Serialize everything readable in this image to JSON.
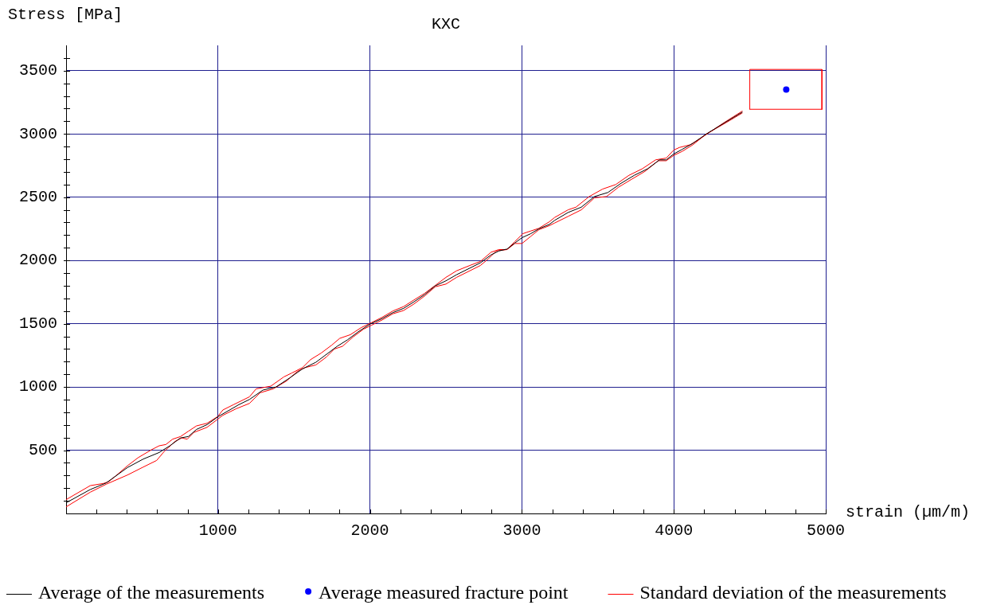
{
  "chart_data": {
    "type": "line",
    "title": "KXC",
    "xlabel": "strain (µm/m)",
    "ylabel": "Stress [MPa]",
    "xlim": [
      0,
      5000
    ],
    "ylim": [
      0,
      3700
    ],
    "xticks": [
      {
        "value": 200,
        "label": null
      },
      {
        "value": 400,
        "label": null
      },
      {
        "value": 600,
        "label": null
      },
      {
        "value": 800,
        "label": null
      },
      1000,
      {
        "value": 1200,
        "label": null
      },
      {
        "value": 1400,
        "label": null
      },
      {
        "value": 1600,
        "label": null
      },
      {
        "value": 1800,
        "label": null
      },
      2000,
      {
        "value": 2200,
        "label": null
      },
      {
        "value": 2400,
        "label": null
      },
      {
        "value": 2600,
        "label": null
      },
      {
        "value": 2800,
        "label": null
      },
      3000,
      {
        "value": 3200,
        "label": null
      },
      {
        "value": 3400,
        "label": null
      },
      {
        "value": 3600,
        "label": null
      },
      {
        "value": 3800,
        "label": null
      },
      4000,
      {
        "value": 4200,
        "label": null
      },
      {
        "value": 4400,
        "label": null
      },
      {
        "value": 4600,
        "label": null
      },
      {
        "value": 4800,
        "label": null
      },
      5000
    ],
    "yticks": [
      {
        "value": 100,
        "label": null
      },
      {
        "value": 200,
        "label": null
      },
      {
        "value": 300,
        "label": null
      },
      {
        "value": 400,
        "label": null
      },
      500,
      {
        "value": 600,
        "label": null
      },
      {
        "value": 700,
        "label": null
      },
      {
        "value": 800,
        "label": null
      },
      {
        "value": 900,
        "label": null
      },
      1000,
      {
        "value": 1100,
        "label": null
      },
      {
        "value": 1200,
        "label": null
      },
      {
        "value": 1300,
        "label": null
      },
      {
        "value": 1400,
        "label": null
      },
      1500,
      {
        "value": 1600,
        "label": null
      },
      {
        "value": 1700,
        "label": null
      },
      {
        "value": 1800,
        "label": null
      },
      {
        "value": 1900,
        "label": null
      },
      2000,
      {
        "value": 2100,
        "label": null
      },
      {
        "value": 2200,
        "label": null
      },
      {
        "value": 2300,
        "label": null
      },
      {
        "value": 2400,
        "label": null
      },
      2500,
      {
        "value": 2600,
        "label": null
      },
      {
        "value": 2700,
        "label": null
      },
      {
        "value": 2800,
        "label": null
      },
      {
        "value": 2900,
        "label": null
      },
      3000,
      {
        "value": 3100,
        "label": null
      },
      {
        "value": 3200,
        "label": null
      },
      {
        "value": 3300,
        "label": null
      },
      {
        "value": 3400,
        "label": null
      },
      3500,
      {
        "value": 3600,
        "label": null
      }
    ],
    "grid": true,
    "legend": "bottom",
    "series": [
      {
        "name": "Average of the measurements",
        "color": "#000000",
        "x": [
          0,
          159,
          264,
          404,
          508,
          613,
          683,
          753,
          805,
          858,
          928,
          1000,
          1137,
          1207,
          1295,
          1382,
          1469,
          1556,
          1644,
          1714,
          1784,
          1853,
          1923,
          1998,
          2081,
          2150,
          2221,
          2290,
          2360,
          2430,
          2500,
          2570,
          2657,
          2727,
          2797,
          2849,
          2902,
          2954,
          3001,
          3059,
          3112,
          3181,
          3216,
          3304,
          3391,
          3478,
          3566,
          3653,
          3740,
          3828,
          3906,
          3950,
          3999,
          4055,
          4125,
          4212,
          4334,
          4450
        ],
        "values": [
          84,
          189,
          241,
          363,
          430,
          482,
          535,
          597,
          608,
          664,
          702,
          765,
          860,
          901,
          975,
          1000,
          1069,
          1143,
          1195,
          1258,
          1321,
          1373,
          1436,
          1495,
          1541,
          1587,
          1621,
          1673,
          1730,
          1799,
          1839,
          1887,
          1939,
          1981,
          2044,
          2075,
          2090,
          2138,
          2180,
          2212,
          2250,
          2285,
          2317,
          2379,
          2421,
          2505,
          2537,
          2610,
          2673,
          2725,
          2795,
          2795,
          2841,
          2878,
          2925,
          2998,
          3088,
          3172
        ]
      },
      {
        "name": "Average measured fracture point",
        "type": "scatter",
        "marker": "circle",
        "color": "#0000ff",
        "x": [
          4740
        ],
        "values": [
          3350
        ]
      },
      {
        "name": "Standard deviation of the measurements",
        "color": "#ff0000",
        "x": [
          0,
          159,
          246,
          281,
          334,
          404,
          473,
          561,
          613,
          657,
          701,
          753,
          805,
          858,
          928,
          997,
          1032,
          1102,
          1207,
          1251,
          1347,
          1434,
          1487,
          1556,
          1609,
          1679,
          1749,
          1801,
          1871,
          1941,
          2011,
          2081,
          2150,
          2221,
          2290,
          2360,
          2430,
          2500,
          2570,
          2657,
          2727,
          2797,
          2849,
          2902,
          2954,
          3007,
          3059,
          3112,
          3181,
          3216,
          3304,
          3356,
          3443,
          3531,
          3618,
          3705,
          3793,
          3880,
          3950,
          3999,
          4037,
          4107,
          4177,
          4334,
          4450
        ],
        "values": [
          109,
          220,
          237,
          252,
          304,
          377,
          440,
          503,
          535,
          545,
          587,
          608,
          650,
          692,
          713,
          765,
          818,
          860,
          922,
          985,
          1006,
          1080,
          1111,
          1153,
          1216,
          1268,
          1331,
          1384,
          1413,
          1468,
          1509,
          1551,
          1600,
          1635,
          1688,
          1740,
          1803,
          1866,
          1918,
          1960,
          1992,
          2065,
          2086,
          2086,
          2149,
          2212,
          2233,
          2254,
          2306,
          2340,
          2400,
          2421,
          2505,
          2564,
          2600,
          2673,
          2725,
          2795,
          2809,
          2872,
          2893,
          2914,
          2966,
          3092,
          3180
        ]
      },
      {
        "color": "#ff0000",
        "x": [
          0,
          159,
          264,
          404,
          508,
          596,
          648,
          718,
          762,
          797,
          840,
          928,
          997,
          1032,
          1120,
          1207,
          1277,
          1364,
          1452,
          1521,
          1574,
          1644,
          1714,
          1766,
          1819,
          1888,
          1958,
          2011,
          2081,
          2150,
          2221,
          2290,
          2360,
          2430,
          2500,
          2570,
          2657,
          2727,
          2779,
          2832,
          2902,
          2954,
          3001,
          3059,
          3112,
          3181,
          3216,
          3304,
          3391,
          3478,
          3557,
          3636,
          3723,
          3810,
          3898,
          3950,
          3999,
          4055,
          4125,
          4212,
          4334,
          4450
        ],
        "values": [
          52,
          168,
          231,
          304,
          367,
          419,
          493,
          570,
          597,
          587,
          640,
          681,
          744,
          776,
          828,
          870,
          954,
          985,
          1048,
          1122,
          1153,
          1174,
          1237,
          1300,
          1321,
          1394,
          1457,
          1488,
          1530,
          1578,
          1604,
          1656,
          1719,
          1792,
          1813,
          1866,
          1918,
          1960,
          2013,
          2075,
          2086,
          2134,
          2134,
          2191,
          2243,
          2275,
          2296,
          2348,
          2400,
          2495,
          2505,
          2579,
          2642,
          2704,
          2788,
          2788,
          2830,
          2862,
          2914,
          2998,
          3082,
          3165
        ]
      },
      {
        "color": "#ff0000",
        "x": [
          4500,
          4500,
          4975,
          4975
        ],
        "values": [
          3195,
          3510,
          3510,
          3195
        ]
      },
      {
        "color": "#ff0000",
        "x": [
          4500,
          4975
        ],
        "values": [
          3195,
          3195
        ]
      }
    ]
  }
}
